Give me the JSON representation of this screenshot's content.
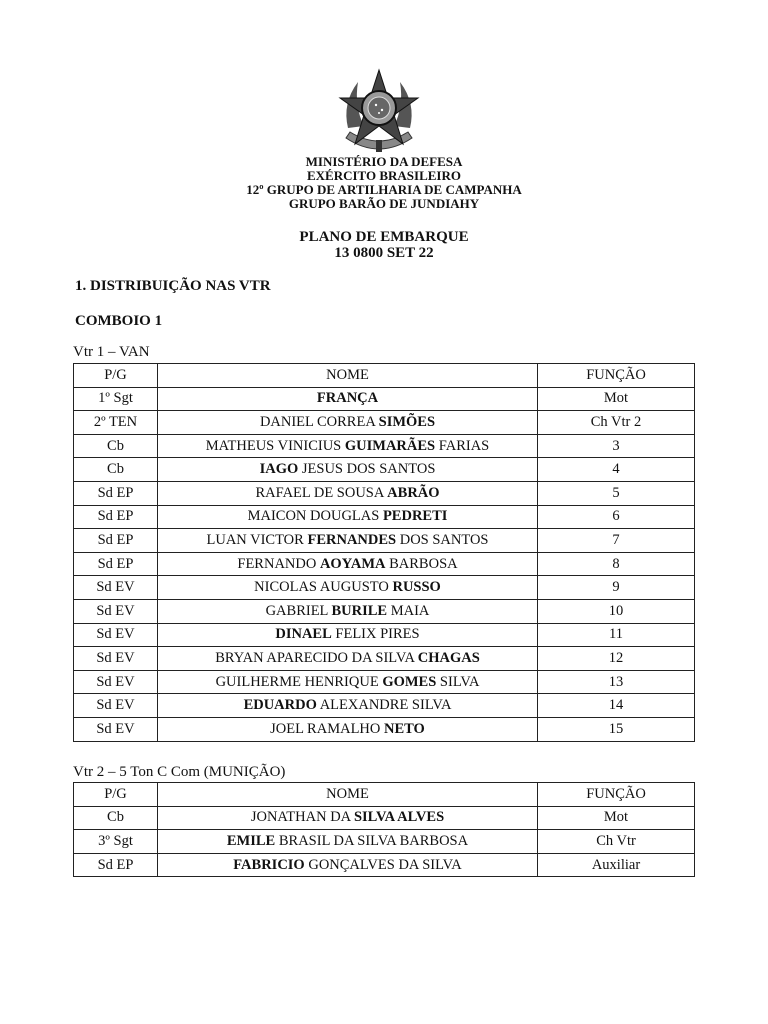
{
  "header": {
    "lines": [
      "MINISTÉRIO DA DEFESA",
      "EXÉRCITO BRASILEIRO",
      "12º GRUPO DE ARTILHARIA DE CAMPANHA",
      "GRUPO BARÃO DE JUNDIAHY"
    ],
    "emblem": "brazil-coat-of-arms"
  },
  "title": {
    "main": "PLANO DE EMBARQUE",
    "date": "13 0800 SET 22"
  },
  "section": "1. DISTRIBUIÇÃO NAS VTR",
  "convoy": "COMBOIO 1",
  "columns": [
    "P/G",
    "NOME",
    "FUNÇÃO"
  ],
  "vehicles": [
    {
      "caption": "Vtr 1 – VAN",
      "rows": [
        {
          "pg": "1º Sgt",
          "name": [
            [
              "",
              "FRANÇA",
              ""
            ]
          ],
          "func": "Mot"
        },
        {
          "pg": "2º TEN",
          "name": [
            [
              "DANIEL CORREA ",
              "SIMÕES",
              ""
            ]
          ],
          "func": "Ch Vtr 2"
        },
        {
          "pg": "Cb",
          "name": [
            [
              "MATHEUS VINICIUS ",
              "GUIMARÃES",
              " FARIAS"
            ]
          ],
          "func": "3"
        },
        {
          "pg": "Cb",
          "name": [
            [
              "",
              "IAGO",
              " JESUS DOS SANTOS"
            ]
          ],
          "func": "4"
        },
        {
          "pg": "Sd EP",
          "name": [
            [
              "RAFAEL DE SOUSA ",
              "ABRÃO",
              ""
            ]
          ],
          "func": "5"
        },
        {
          "pg": "Sd EP",
          "name": [
            [
              "MAICON DOUGLAS ",
              "PEDRETI",
              ""
            ]
          ],
          "func": "6"
        },
        {
          "pg": "Sd EP",
          "name": [
            [
              "LUAN VICTOR ",
              "FERNANDES",
              " DOS SANTOS"
            ]
          ],
          "func": "7"
        },
        {
          "pg": "Sd EP",
          "name": [
            [
              "FERNANDO ",
              "AOYAMA",
              " BARBOSA"
            ]
          ],
          "func": "8"
        },
        {
          "pg": "Sd EV",
          "name": [
            [
              "NICOLAS AUGUSTO ",
              "RUSSO",
              ""
            ]
          ],
          "func": "9"
        },
        {
          "pg": "Sd EV",
          "name": [
            [
              "GABRIEL ",
              "BURILE",
              " MAIA"
            ]
          ],
          "func": "10"
        },
        {
          "pg": "Sd EV",
          "name": [
            [
              "",
              "DINAEL",
              " FELIX PIRES"
            ]
          ],
          "func": "11"
        },
        {
          "pg": "Sd EV",
          "name": [
            [
              "BRYAN APARECIDO DA SILVA ",
              "CHAGAS",
              ""
            ]
          ],
          "func": "12"
        },
        {
          "pg": "Sd EV",
          "name": [
            [
              "GUILHERME HENRIQUE ",
              "GOMES",
              " SILVA"
            ]
          ],
          "func": "13"
        },
        {
          "pg": "Sd EV",
          "name": [
            [
              "",
              "EDUARDO",
              " ALEXANDRE SILVA"
            ]
          ],
          "func": "14"
        },
        {
          "pg": "Sd EV",
          "name": [
            [
              "JOEL RAMALHO ",
              "NETO",
              ""
            ]
          ],
          "func": "15"
        }
      ]
    },
    {
      "caption": "Vtr 2 – 5 Ton C Com (MUNIÇÃO)",
      "rows": [
        {
          "pg": "Cb",
          "name": [
            [
              "JONATHAN DA ",
              "SILVA ALVES",
              ""
            ]
          ],
          "func": "Mot"
        },
        {
          "pg": "3º Sgt",
          "name": [
            [
              "",
              "EMILE",
              " BRASIL DA SILVA BARBOSA"
            ]
          ],
          "func": "Ch Vtr"
        },
        {
          "pg": "Sd EP",
          "name": [
            [
              "",
              "FABRICIO",
              " GONÇALVES DA SILVA"
            ]
          ],
          "func": "Auxiliar"
        }
      ]
    }
  ]
}
